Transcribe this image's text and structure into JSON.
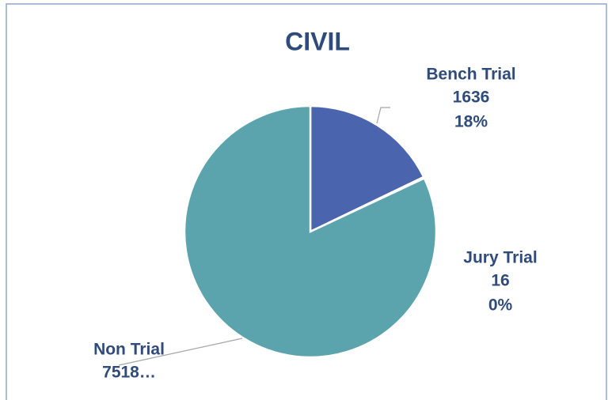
{
  "chart_data": {
    "type": "pie",
    "title": "CIVIL",
    "categories": [
      "Bench Trial",
      "Jury Trial",
      "Non Trial"
    ],
    "values": [
      1636,
      16,
      7518
    ],
    "value_labels": [
      "1636",
      "16",
      "7518…"
    ],
    "percent_labels": [
      "18%",
      "0%",
      null
    ],
    "colors": [
      "#4a64ad",
      "#7f9fc9",
      "#5ba4ae"
    ]
  }
}
